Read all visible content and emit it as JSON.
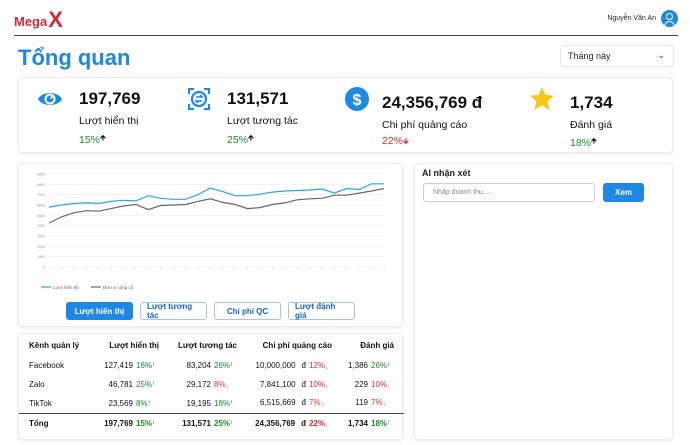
{
  "brand": {
    "name_part1": "Mega",
    "name_part2": "X"
  },
  "user": {
    "name": "Nguyễn Văn An"
  },
  "page": {
    "title": "Tổng quan"
  },
  "period_select": {
    "value": "Tháng này"
  },
  "kpis": [
    {
      "value": "197,769",
      "label": "Lượt hiển thị",
      "change": "15%",
      "trend": "up",
      "icon": "eye-icon",
      "color": "#1e88e5"
    },
    {
      "value": "131,571",
      "label": "Lượt tương tác",
      "change": "25%",
      "trend": "up",
      "icon": "interaction-icon",
      "color": "#1e88e5"
    },
    {
      "value": "24,356,769  đ",
      "label": "Chi phí quảng cáo",
      "change": "22%",
      "trend": "down",
      "icon": "dollar-icon",
      "color": "#1e88e5"
    },
    {
      "value": "1,734",
      "label": "Đánh giá",
      "change": "18%",
      "trend": "up",
      "icon": "star-icon",
      "color": "#f5c518"
    }
  ],
  "chart_tabs": {
    "impressions": "Lượt hiển thị",
    "interactions": "Lượt tương tác",
    "ad_cost": "Chi phí QC",
    "reviews": "Lượt đánh giá"
  },
  "chart_data": {
    "type": "line",
    "series": [
      {
        "name": "Lượt hiển thị",
        "color": "#29a8e0",
        "values": [
          5800,
          6000,
          6150,
          6200,
          6150,
          6350,
          6450,
          6400,
          6900,
          6650,
          6550,
          6550,
          7000,
          7650,
          7300,
          6900,
          6900,
          7050,
          7250,
          7350,
          7400,
          7450,
          7550,
          7150,
          7600,
          7500,
          8050,
          8050
        ]
      },
      {
        "name": "Đơn vị cộng cổ",
        "color": "#666666",
        "values": [
          4250,
          4850,
          5250,
          5450,
          5400,
          5650,
          5900,
          6050,
          5550,
          5950,
          6000,
          6050,
          6350,
          6600,
          6250,
          6050,
          5650,
          5750,
          6050,
          6200,
          6500,
          6600,
          6650,
          6950,
          6950,
          7150,
          7350,
          7600
        ]
      }
    ],
    "ylim": [
      0,
      9000
    ],
    "yticks": [
      0,
      1000,
      2000,
      3000,
      4000,
      5000,
      6000,
      7000,
      8000,
      9000
    ],
    "legend_placement": "bottom-left",
    "grid": true
  },
  "ai": {
    "title": "AI nhận xét",
    "placeholder": "Nhập doanh thu.....",
    "button": "Xem"
  },
  "table": {
    "headers": [
      "Kênh quản lý",
      "Lượt hiển thị",
      "Lượt tương tác",
      "Chi phí quảng cáo",
      "Đánh giá"
    ],
    "rows": [
      {
        "channel": "Facebook",
        "impr": "127,419",
        "impr_pct": "16%",
        "impr_trend": "up",
        "inter": "83,204",
        "inter_pct": "26%",
        "inter_trend": "up",
        "cost": "10,000,000",
        "cost_unit": "đ",
        "cost_pct": "12%",
        "cost_trend": "down",
        "rev": "1,386",
        "rev_pct": "26%",
        "rev_trend": "up"
      },
      {
        "channel": "Zalo",
        "impr": "46,781",
        "impr_pct": "25%",
        "impr_trend": "up",
        "inter": "29,172",
        "inter_pct": "8%",
        "inter_trend": "down",
        "cost": "7,841,100",
        "cost_unit": "đ",
        "cost_pct": "10%",
        "cost_trend": "down",
        "rev": "229",
        "rev_pct": "10%",
        "rev_trend": "down"
      },
      {
        "channel": "TikTok",
        "impr": "23,569",
        "impr_pct": "8%",
        "impr_trend": "up",
        "inter": "19,195",
        "inter_pct": "18%",
        "inter_trend": "up",
        "cost": "6,515,669",
        "cost_unit": "đ",
        "cost_pct": "7%",
        "cost_trend": "down",
        "rev": "119",
        "rev_pct": "7%",
        "rev_trend": "down"
      }
    ],
    "total": {
      "channel": "Tổng",
      "impr": "197,769",
      "impr_pct": "15%",
      "impr_trend": "up",
      "inter": "131,571",
      "inter_pct": "25%",
      "inter_trend": "up",
      "cost": "24,356,769",
      "cost_unit": "đ",
      "cost_pct": "22%",
      "cost_trend": "down",
      "rev": "1,734",
      "rev_pct": "18%",
      "rev_trend": "up"
    }
  }
}
